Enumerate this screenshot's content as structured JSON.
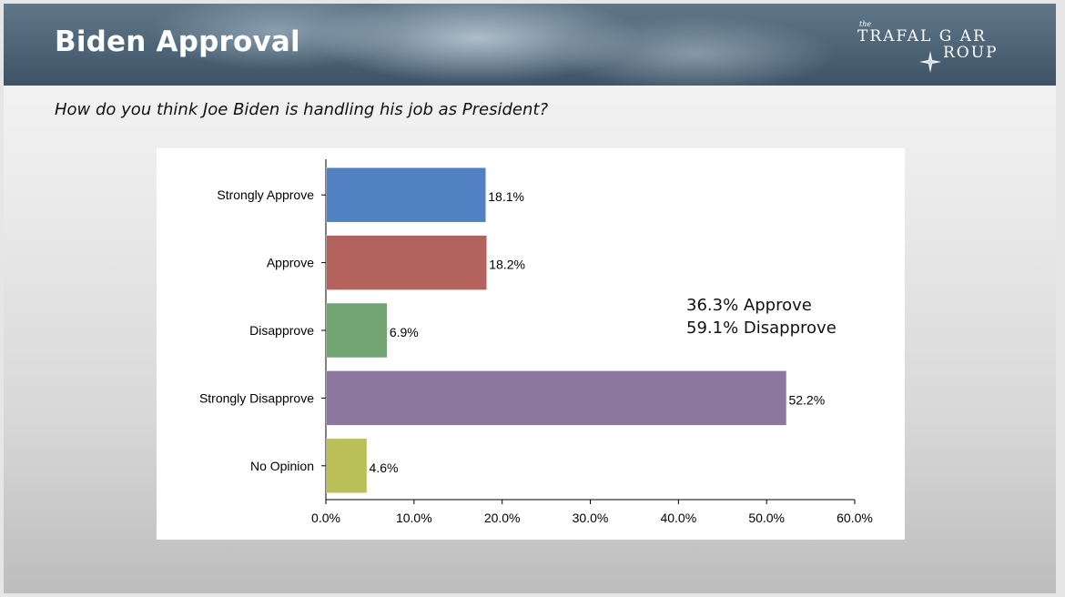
{
  "header": {
    "title": "Biden Approval",
    "logo": {
      "small": "the",
      "line1": "TRAFAL G AR",
      "line2": "ROUP"
    }
  },
  "question": "How do you think Joe Biden is handling his job as President?",
  "summary": {
    "approve": "36.3% Approve",
    "disapprove": "59.1% Disapprove"
  },
  "colors": {
    "bars": [
      "#5281c3",
      "#b3625d",
      "#72a474",
      "#8c779e",
      "#bbbf58"
    ]
  },
  "chart_data": {
    "type": "bar",
    "orientation": "horizontal",
    "title": "",
    "xlabel": "",
    "ylabel": "",
    "categories": [
      "Strongly Approve",
      "Approve",
      "Disapprove",
      "Strongly Disapprove",
      "No Opinion"
    ],
    "values": [
      18.1,
      18.2,
      6.9,
      52.2,
      4.6
    ],
    "value_labels": [
      "18.1%",
      "18.2%",
      "6.9%",
      "52.2%",
      "4.6%"
    ],
    "xlim": [
      0,
      60
    ],
    "xticks": [
      0,
      10,
      20,
      30,
      40,
      50,
      60
    ],
    "xtick_labels": [
      "0.0%",
      "10.0%",
      "20.0%",
      "30.0%",
      "40.0%",
      "50.0%",
      "60.0%"
    ],
    "grid": false,
    "legend": "none"
  }
}
